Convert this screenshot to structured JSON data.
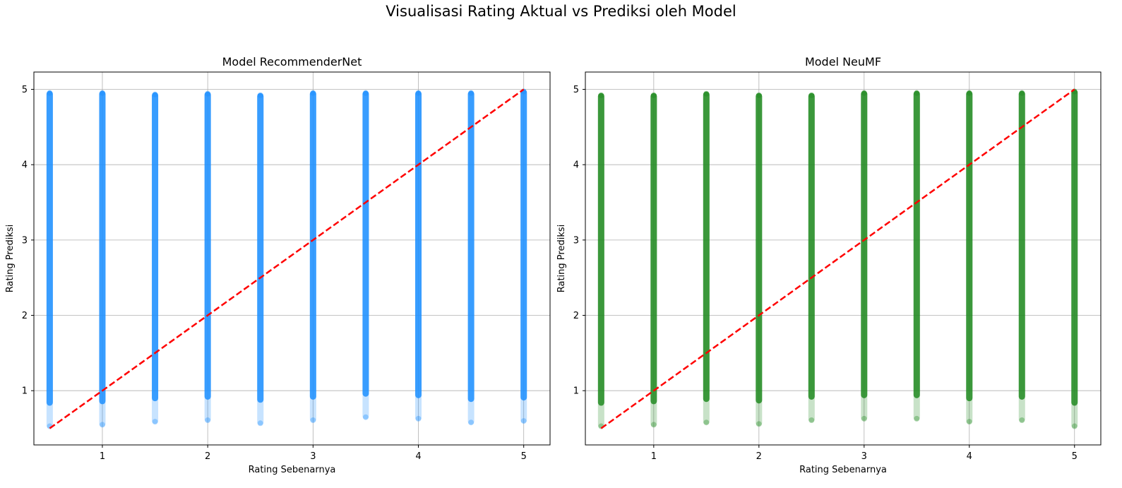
{
  "figure_title": "Visualisasi Rating Aktual vs Prediksi oleh Model",
  "chart_data": [
    {
      "type": "scatter",
      "title": "Model RecommenderNet",
      "xlabel": "Rating Sebenarnya",
      "ylabel": "Rating Prediksi",
      "xlim": [
        0.35,
        5.25
      ],
      "ylim": [
        0.28,
        5.23
      ],
      "xticks": [
        1,
        2,
        3,
        4,
        5
      ],
      "yticks": [
        1,
        2,
        3,
        4,
        5
      ],
      "grid": true,
      "point_color": "#1e90ff",
      "reference_line": {
        "x": [
          0.5,
          5.0
        ],
        "y": [
          0.5,
          5.0
        ],
        "color": "#ff0000",
        "style": "dashed"
      },
      "columns": [
        {
          "x": 0.5,
          "y_min": 0.5,
          "y_max": 4.98
        },
        {
          "x": 1.0,
          "y_min": 0.52,
          "y_max": 4.98
        },
        {
          "x": 1.5,
          "y_min": 0.56,
          "y_max": 4.96
        },
        {
          "x": 2.0,
          "y_min": 0.58,
          "y_max": 4.97
        },
        {
          "x": 2.5,
          "y_min": 0.54,
          "y_max": 4.95
        },
        {
          "x": 3.0,
          "y_min": 0.58,
          "y_max": 4.98
        },
        {
          "x": 3.5,
          "y_min": 0.62,
          "y_max": 4.98
        },
        {
          "x": 4.0,
          "y_min": 0.6,
          "y_max": 4.98
        },
        {
          "x": 4.5,
          "y_min": 0.55,
          "y_max": 4.98
        },
        {
          "x": 5.0,
          "y_min": 0.57,
          "y_max": 5.0
        }
      ]
    },
    {
      "type": "scatter",
      "title": "Model NeuMF",
      "xlabel": "Rating Sebenarnya",
      "ylabel": "Rating Prediksi",
      "xlim": [
        0.35,
        5.25
      ],
      "ylim": [
        0.28,
        5.23
      ],
      "xticks": [
        1,
        2,
        3,
        4,
        5
      ],
      "yticks": [
        1,
        2,
        3,
        4,
        5
      ],
      "grid": true,
      "point_color": "#228b22",
      "reference_line": {
        "x": [
          0.5,
          5.0
        ],
        "y": [
          0.5,
          5.0
        ],
        "color": "#ff0000",
        "style": "dashed"
      },
      "columns": [
        {
          "x": 0.5,
          "y_min": 0.5,
          "y_max": 4.95
        },
        {
          "x": 1.0,
          "y_min": 0.52,
          "y_max": 4.95
        },
        {
          "x": 1.5,
          "y_min": 0.55,
          "y_max": 4.97
        },
        {
          "x": 2.0,
          "y_min": 0.53,
          "y_max": 4.95
        },
        {
          "x": 2.5,
          "y_min": 0.58,
          "y_max": 4.95
        },
        {
          "x": 3.0,
          "y_min": 0.6,
          "y_max": 4.98
        },
        {
          "x": 3.5,
          "y_min": 0.6,
          "y_max": 4.98
        },
        {
          "x": 4.0,
          "y_min": 0.56,
          "y_max": 4.98
        },
        {
          "x": 4.5,
          "y_min": 0.58,
          "y_max": 4.98
        },
        {
          "x": 5.0,
          "y_min": 0.5,
          "y_max": 5.0
        }
      ]
    }
  ]
}
